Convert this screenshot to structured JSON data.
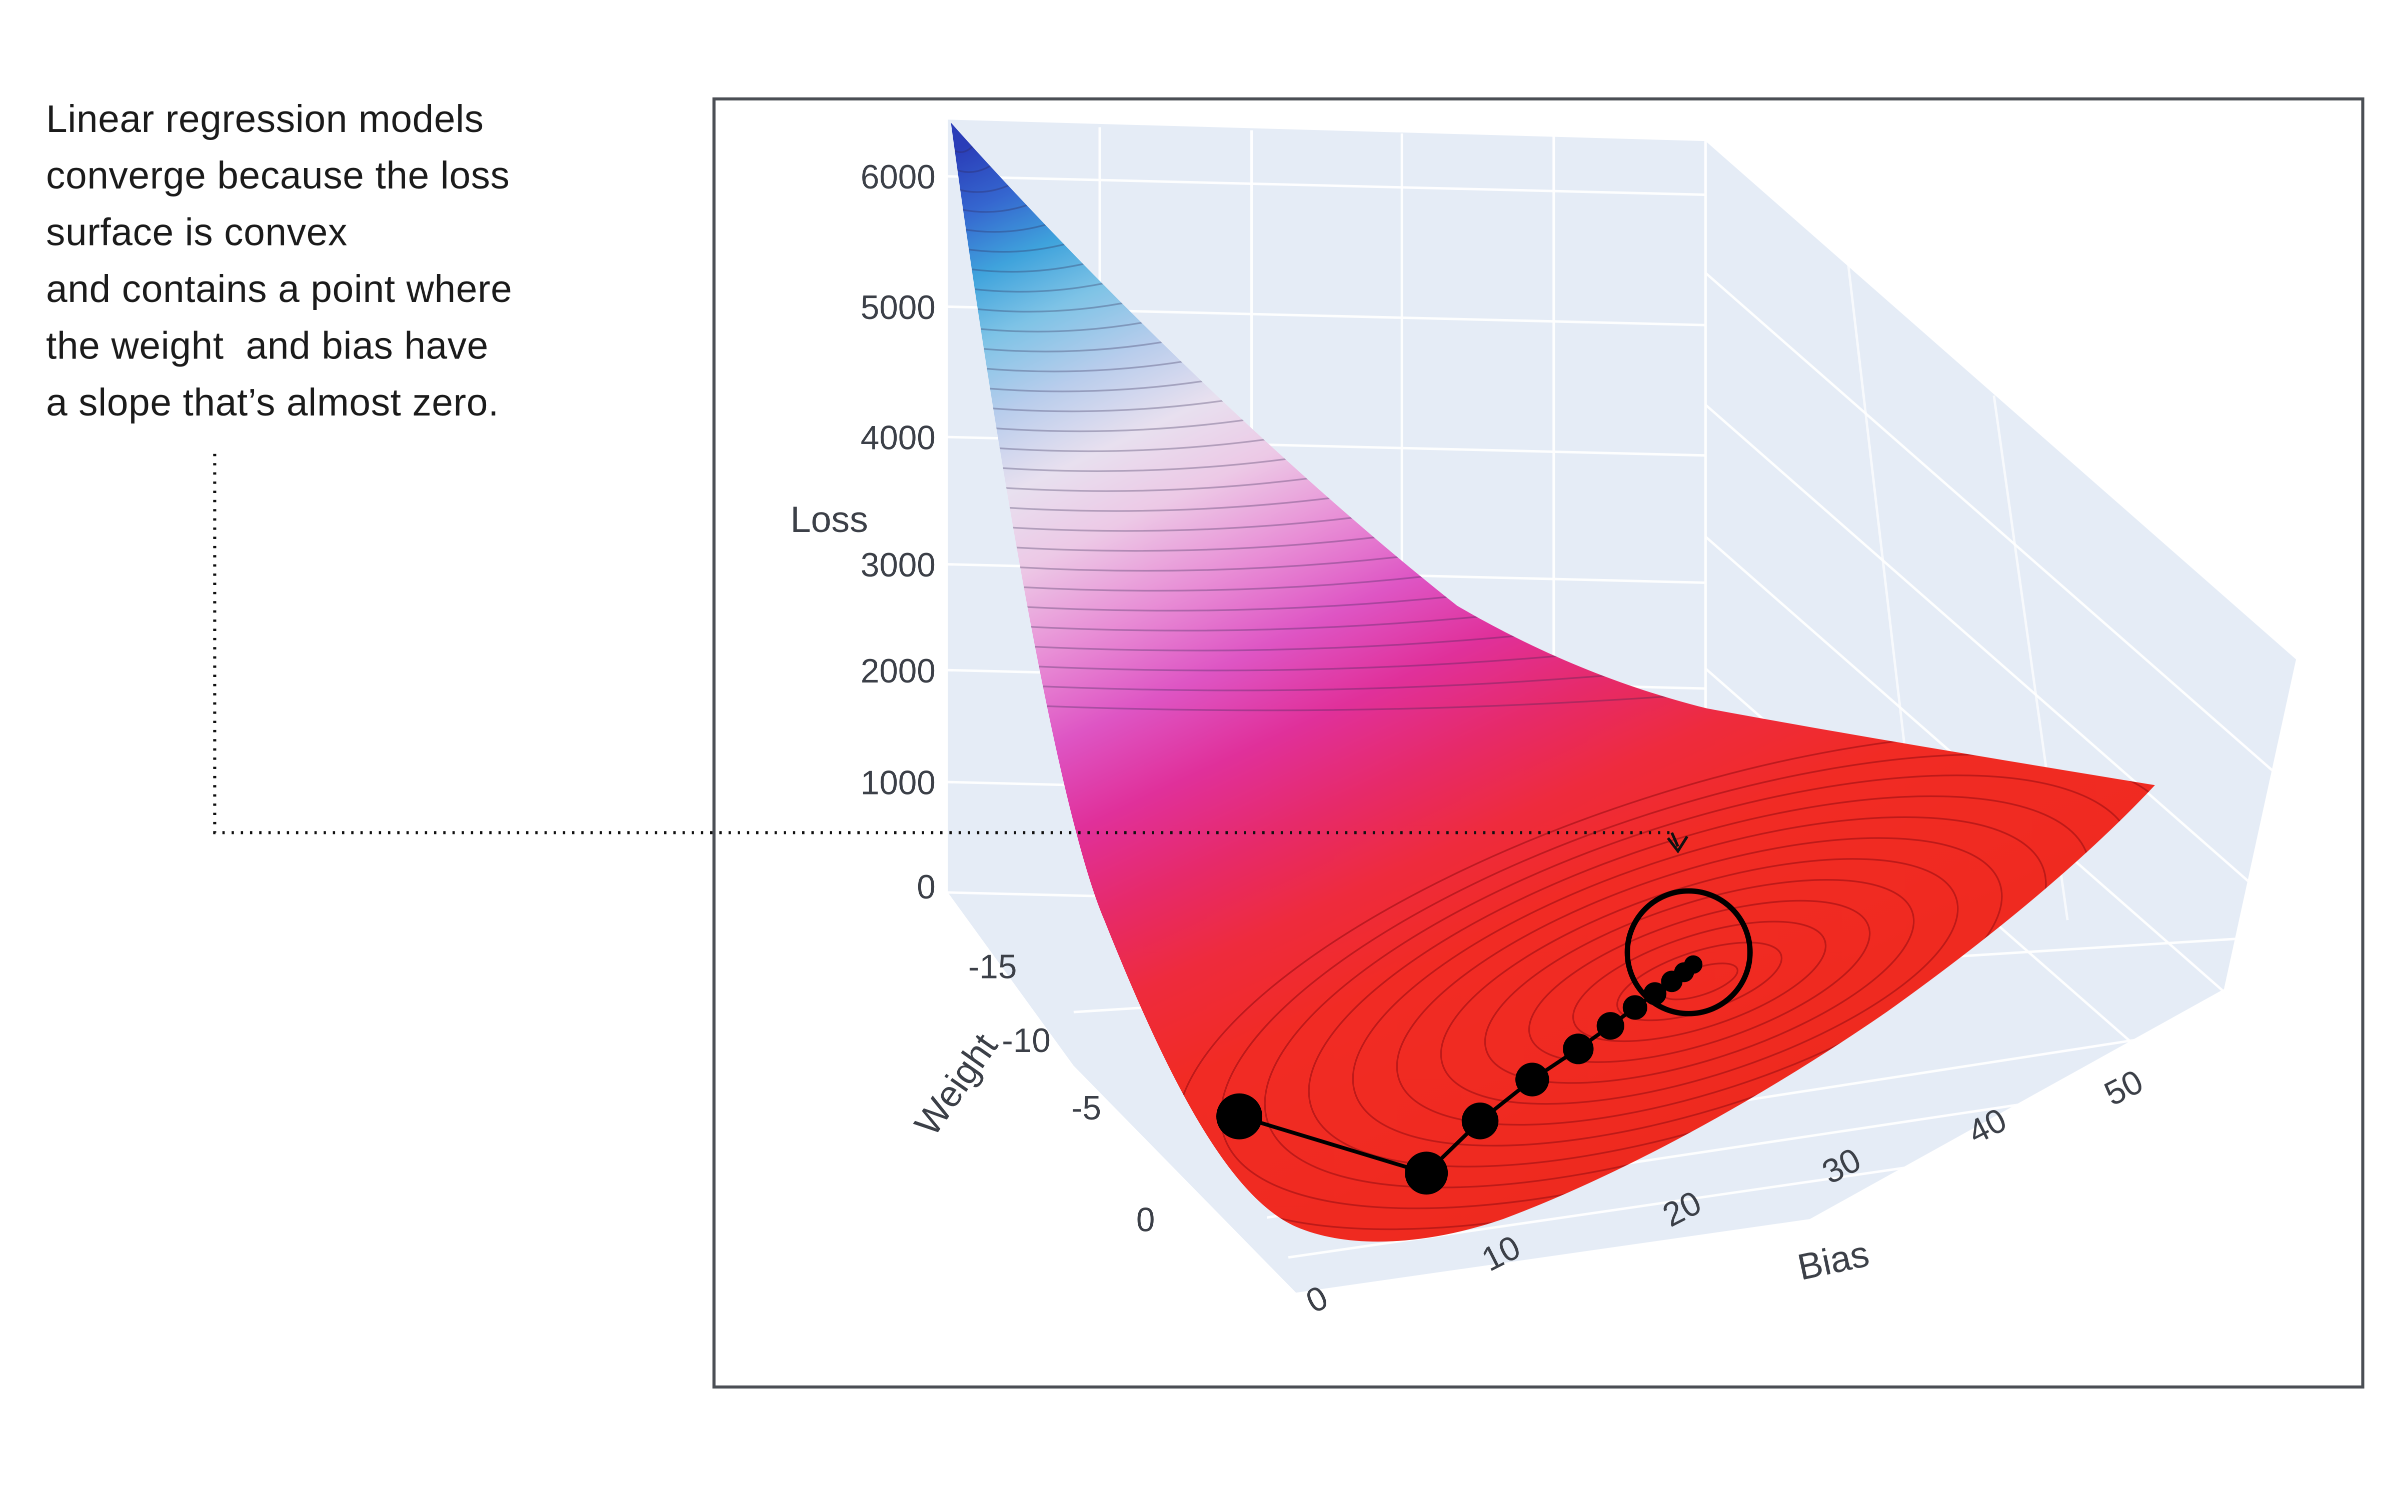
{
  "annotation": {
    "text": "Linear regression models\nconverge because the loss\nsurface is convex\nand contains a point where\nthe weight  and bias have\na slope that’s almost zero."
  },
  "labels": {
    "loss_title": "Loss",
    "weight_title": "Weight",
    "bias_title": "Bias",
    "loss": [
      "6000",
      "5000",
      "4000",
      "3000",
      "2000",
      "1000",
      "0"
    ],
    "weight": [
      "0",
      "-5",
      "-10",
      "-15"
    ],
    "bias": [
      "0",
      "10",
      "20",
      "30",
      "40",
      "50"
    ]
  },
  "colors": {
    "scene_background": "#e5ecf6",
    "surface_high_loss": "#2a3db8",
    "surface_mid_cyan": "#3fa3dc",
    "surface_white_band": "#e8e0ef",
    "surface_magenta": "#de55c4",
    "surface_low_loss_red": "#ee2a1e",
    "marker_black": "#000000",
    "panel_border": "#4b4f55"
  },
  "chart_data": {
    "type": "surface",
    "title": "",
    "x": {
      "label": "Bias",
      "range": [
        0,
        50
      ],
      "ticks": [
        0,
        10,
        20,
        30,
        40,
        50
      ]
    },
    "y": {
      "label": "Weight",
      "range": [
        -20,
        5
      ],
      "ticks": [
        -15,
        -10,
        -5,
        0
      ]
    },
    "z": {
      "label": "Loss",
      "range": [
        0,
        6500
      ],
      "ticks": [
        0,
        1000,
        2000,
        3000,
        4000,
        5000,
        6000
      ]
    },
    "surface_description": "Convex bowl-shaped loss surface; loss is high (blue, ~6000+) at far corner and descends through white and magenta bands to a red valley floor near zero loss",
    "colorscale_low_to_high": [
      "#ee2a1e",
      "#e62a6a",
      "#de55c4",
      "#e8e0ef",
      "#7ec3e6",
      "#3fa3dc",
      "#2a3db8"
    ],
    "gradient_descent": {
      "approx_path_bias_weight": [
        [
          3,
          -4
        ],
        [
          8,
          -2
        ],
        [
          10,
          -4
        ],
        [
          12,
          -6
        ],
        [
          13.5,
          -7.5
        ],
        [
          15,
          -8.5
        ],
        [
          16,
          -9.5
        ],
        [
          17,
          -10
        ],
        [
          18,
          -10.5
        ],
        [
          19,
          -11
        ],
        [
          20,
          -11.5
        ]
      ],
      "marker_style": "black dots shrinking in size along the path toward the minimum",
      "minimum": {
        "bias": 20,
        "weight": -12,
        "loss_slope": "almost zero",
        "highlighted_with": "black circle outline and dotted arrow from annotation"
      }
    },
    "grid": true,
    "legend": false
  }
}
